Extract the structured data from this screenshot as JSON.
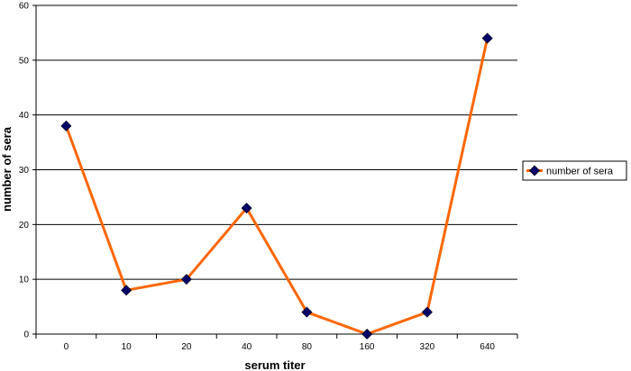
{
  "chart_data": {
    "type": "line",
    "title": "",
    "xlabel": "serum titer",
    "ylabel": "number of sera",
    "categories": [
      "0",
      "10",
      "20",
      "40",
      "80",
      "160",
      "320",
      "640"
    ],
    "series": [
      {
        "name": "number of sera",
        "values": [
          38,
          8,
          10,
          23,
          4,
          0,
          4,
          54
        ],
        "color": "#ff6600",
        "marker_color": "#000066"
      }
    ],
    "ylim": [
      0,
      60
    ],
    "yticks": [
      0,
      10,
      20,
      30,
      40,
      50,
      60
    ],
    "grid": true,
    "legend": "right"
  }
}
